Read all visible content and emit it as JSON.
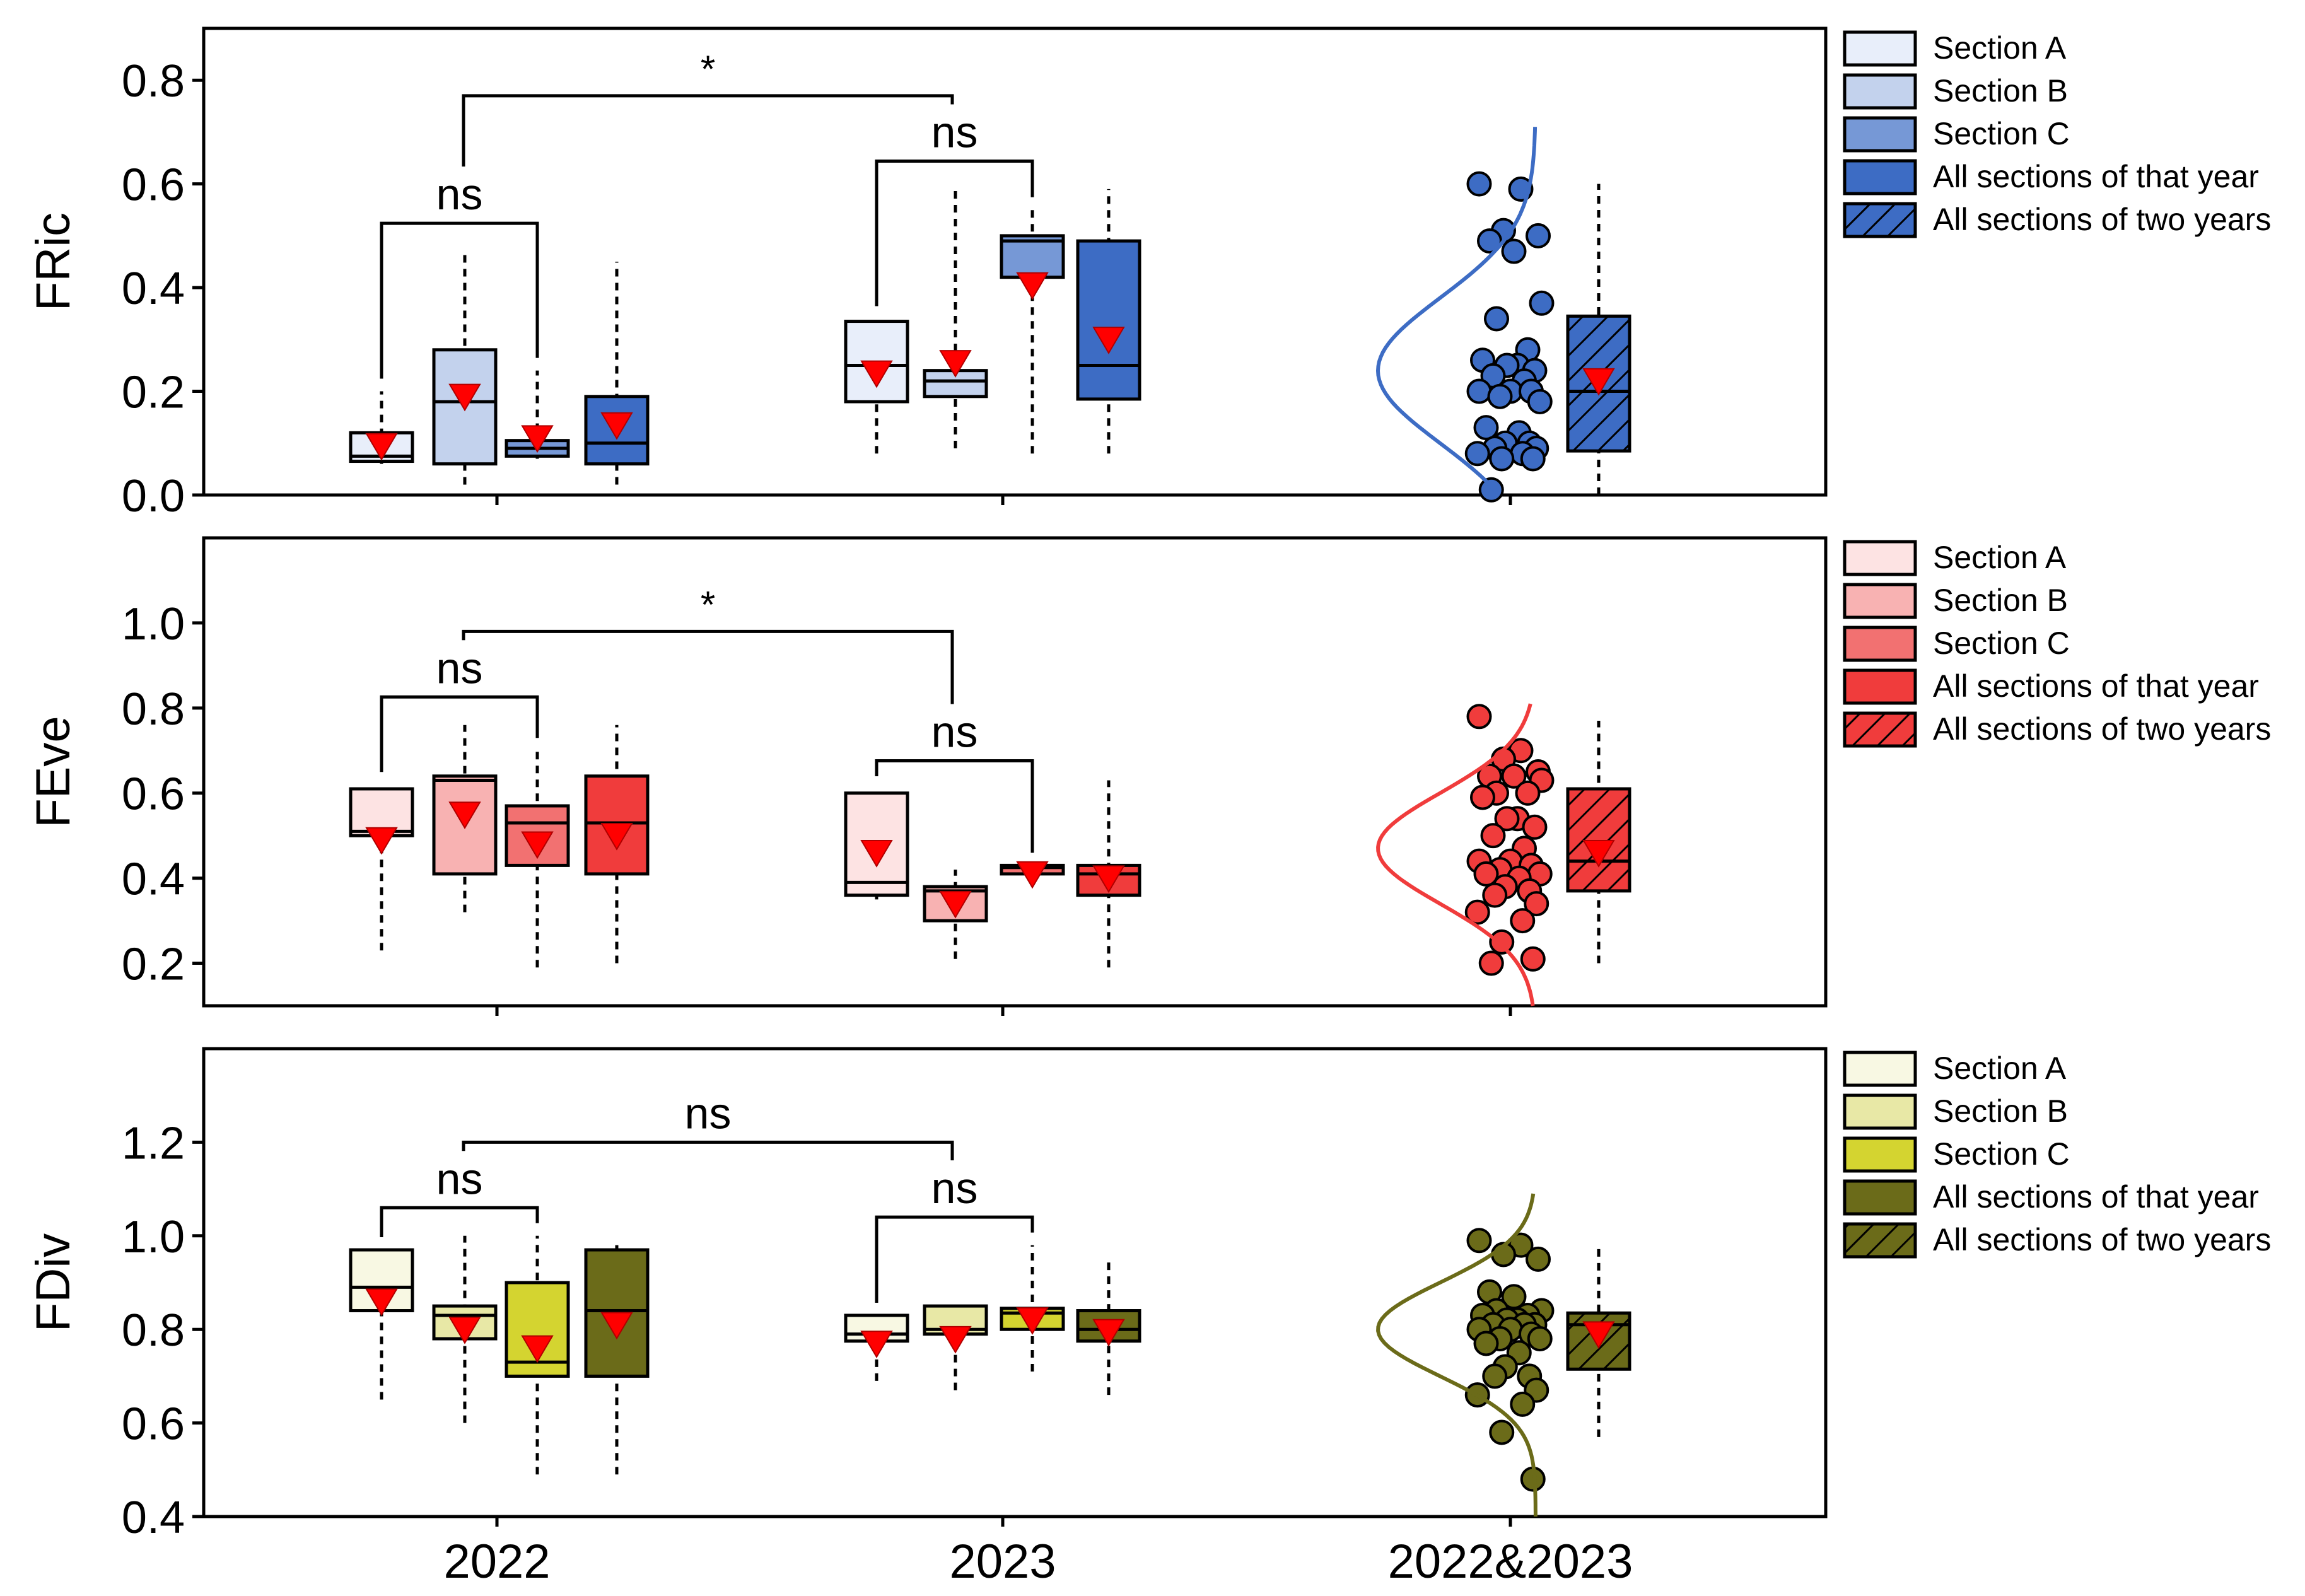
{
  "figure": {
    "x_labels": [
      "2022",
      "2023",
      "2022&2023"
    ],
    "legend_labels": [
      "Section A",
      "Section B",
      "Section C",
      "All sections of that year",
      "All sections of two years"
    ]
  },
  "chart_data": [
    {
      "type": "box",
      "ylabel": "FRic",
      "ylim": [
        0.0,
        0.9
      ],
      "yticks": [
        0.0,
        0.2,
        0.4,
        0.6,
        0.8
      ],
      "colors": [
        "#e8eefa",
        "#c3d2ed",
        "#7698d6",
        "#3d6cc4",
        "#3d6cc4"
      ],
      "boxes": [
        {
          "group": "2022",
          "series": "Section A",
          "whisker_low": 0.06,
          "q1": 0.065,
          "median": 0.075,
          "q3": 0.12,
          "whisker_high": 0.2,
          "mean": 0.095
        },
        {
          "group": "2022",
          "series": "Section B",
          "whisker_low": 0.02,
          "q1": 0.06,
          "median": 0.18,
          "q3": 0.28,
          "whisker_high": 0.47,
          "mean": 0.19
        },
        {
          "group": "2022",
          "series": "Section C",
          "whisker_low": 0.07,
          "q1": 0.075,
          "median": 0.09,
          "q3": 0.105,
          "whisker_high": 0.24,
          "mean": 0.11
        },
        {
          "group": "2022",
          "series": "All sections of that year",
          "whisker_low": 0.02,
          "q1": 0.06,
          "median": 0.1,
          "q3": 0.19,
          "whisker_high": 0.45,
          "mean": 0.135
        },
        {
          "group": "2023",
          "series": "Section A",
          "whisker_low": 0.08,
          "q1": 0.18,
          "median": 0.25,
          "q3": 0.335,
          "whisker_high": 0.34,
          "mean": 0.235
        },
        {
          "group": "2023",
          "series": "Section B",
          "whisker_low": 0.09,
          "q1": 0.19,
          "median": 0.22,
          "q3": 0.24,
          "whisker_high": 0.59,
          "mean": 0.255
        },
        {
          "group": "2023",
          "series": "Section C",
          "whisker_low": 0.08,
          "q1": 0.42,
          "median": 0.49,
          "q3": 0.5,
          "whisker_high": 0.55,
          "mean": 0.405
        },
        {
          "group": "2023",
          "series": "All sections of that year",
          "whisker_low": 0.08,
          "q1": 0.185,
          "median": 0.25,
          "q3": 0.49,
          "whisker_high": 0.59,
          "mean": 0.3
        },
        {
          "group": "2022&2023",
          "series": "All sections of two years",
          "whisker_low": 0.0,
          "q1": 0.085,
          "median": 0.2,
          "q3": 0.345,
          "whisker_high": 0.6,
          "mean": 0.22
        }
      ],
      "points": [
        0.6,
        0.59,
        0.51,
        0.5,
        0.49,
        0.47,
        0.37,
        0.34,
        0.28,
        0.26,
        0.25,
        0.25,
        0.24,
        0.23,
        0.22,
        0.2,
        0.2,
        0.2,
        0.19,
        0.18,
        0.13,
        0.12,
        0.1,
        0.1,
        0.09,
        0.09,
        0.08,
        0.08,
        0.07,
        0.07,
        0.01
      ],
      "curve": {
        "mean": 0.24,
        "sd": 0.14,
        "ymin": 0.0,
        "ymax": 0.71
      },
      "brackets": [
        {
          "from": "2022 Section A",
          "to": "2022 Section C",
          "label": "ns"
        },
        {
          "from": "2023 Section A",
          "to": "2023 Section C",
          "label": "ns"
        },
        {
          "from": "2022",
          "to": "2023",
          "label": "*"
        }
      ]
    },
    {
      "type": "box",
      "ylabel": "FEve",
      "ylim": [
        0.1,
        1.2
      ],
      "yticks": [
        0.2,
        0.4,
        0.6,
        0.8,
        1.0
      ],
      "colors": [
        "#fde3e3",
        "#f8b2b2",
        "#f27171",
        "#f03c3c",
        "#f03c3c"
      ],
      "boxes": [
        {
          "group": "2022",
          "series": "Section A",
          "whisker_low": 0.23,
          "q1": 0.5,
          "median": 0.51,
          "q3": 0.61,
          "whisker_high": 0.62,
          "mean": 0.49
        },
        {
          "group": "2022",
          "series": "Section B",
          "whisker_low": 0.32,
          "q1": 0.41,
          "median": 0.63,
          "q3": 0.64,
          "whisker_high": 0.76,
          "mean": 0.55
        },
        {
          "group": "2022",
          "series": "Section C",
          "whisker_low": 0.19,
          "q1": 0.43,
          "median": 0.53,
          "q3": 0.57,
          "whisker_high": 0.7,
          "mean": 0.48
        },
        {
          "group": "2022",
          "series": "All sections of that year",
          "whisker_low": 0.2,
          "q1": 0.41,
          "median": 0.53,
          "q3": 0.64,
          "whisker_high": 0.76,
          "mean": 0.5
        },
        {
          "group": "2023",
          "series": "Section A",
          "whisker_low": 0.35,
          "q1": 0.36,
          "median": 0.39,
          "q3": 0.6,
          "whisker_high": 0.61,
          "mean": 0.46
        },
        {
          "group": "2023",
          "series": "Section B",
          "whisker_low": 0.21,
          "q1": 0.3,
          "median": 0.37,
          "q3": 0.38,
          "whisker_high": 0.42,
          "mean": 0.34
        },
        {
          "group": "2023",
          "series": "Section C",
          "whisker_low": 0.4,
          "q1": 0.41,
          "median": 0.425,
          "q3": 0.43,
          "whisker_high": 0.43,
          "mean": 0.41
        },
        {
          "group": "2023",
          "series": "All sections of that year",
          "whisker_low": 0.19,
          "q1": 0.36,
          "median": 0.41,
          "q3": 0.43,
          "whisker_high": 0.63,
          "mean": 0.4
        },
        {
          "group": "2022&2023",
          "series": "All sections of two years",
          "whisker_low": 0.2,
          "q1": 0.37,
          "median": 0.44,
          "q3": 0.61,
          "whisker_high": 0.77,
          "mean": 0.46
        }
      ],
      "points": [
        0.78,
        0.7,
        0.68,
        0.65,
        0.64,
        0.64,
        0.63,
        0.6,
        0.6,
        0.59,
        0.54,
        0.54,
        0.52,
        0.5,
        0.47,
        0.44,
        0.44,
        0.43,
        0.42,
        0.41,
        0.41,
        0.4,
        0.38,
        0.37,
        0.36,
        0.34,
        0.32,
        0.3,
        0.25,
        0.21,
        0.2
      ],
      "curve": {
        "mean": 0.47,
        "sd": 0.13,
        "ymin": 0.1,
        "ymax": 0.81
      },
      "brackets": [
        {
          "from": "2022 Section A",
          "to": "2022 Section C",
          "label": "ns"
        },
        {
          "from": "2023 Section A",
          "to": "2023 Section C",
          "label": "ns"
        },
        {
          "from": "2022",
          "to": "2023",
          "label": "*"
        }
      ]
    },
    {
      "type": "box",
      "ylabel": "FDiv",
      "ylim": [
        0.4,
        1.4
      ],
      "yticks": [
        0.4,
        0.6,
        0.8,
        1.0,
        1.2
      ],
      "colors": [
        "#f8f8e3",
        "#e8e8a6",
        "#d4d430",
        "#6b6b19",
        "#6b6b19"
      ],
      "boxes": [
        {
          "group": "2022",
          "series": "Section A",
          "whisker_low": 0.65,
          "q1": 0.84,
          "median": 0.89,
          "q3": 0.97,
          "whisker_high": 0.97,
          "mean": 0.86
        },
        {
          "group": "2022",
          "series": "Section B",
          "whisker_low": 0.6,
          "q1": 0.78,
          "median": 0.83,
          "q3": 0.85,
          "whisker_high": 1.0,
          "mean": 0.8
        },
        {
          "group": "2022",
          "series": "Section C",
          "whisker_low": 0.49,
          "q1": 0.7,
          "median": 0.73,
          "q3": 0.9,
          "whisker_high": 1.0,
          "mean": 0.76
        },
        {
          "group": "2022",
          "series": "All sections of that year",
          "whisker_low": 0.49,
          "q1": 0.7,
          "median": 0.84,
          "q3": 0.97,
          "whisker_high": 0.98,
          "mean": 0.81
        },
        {
          "group": "2023",
          "series": "Section A",
          "whisker_low": 0.69,
          "q1": 0.775,
          "median": 0.79,
          "q3": 0.83,
          "whisker_high": 0.83,
          "mean": 0.77
        },
        {
          "group": "2023",
          "series": "Section B",
          "whisker_low": 0.67,
          "q1": 0.79,
          "median": 0.8,
          "q3": 0.85,
          "whisker_high": 0.85,
          "mean": 0.78
        },
        {
          "group": "2023",
          "series": "Section C",
          "whisker_low": 0.71,
          "q1": 0.8,
          "median": 0.835,
          "q3": 0.845,
          "whisker_high": 0.98,
          "mean": 0.82
        },
        {
          "group": "2023",
          "series": "All sections of that year",
          "whisker_low": 0.66,
          "q1": 0.775,
          "median": 0.8,
          "q3": 0.84,
          "whisker_high": 0.95,
          "mean": 0.795
        },
        {
          "group": "2022&2023",
          "series": "All sections of two years",
          "whisker_low": 0.57,
          "q1": 0.715,
          "median": 0.81,
          "q3": 0.835,
          "whisker_high": 0.98,
          "mean": 0.79
        }
      ],
      "points": [
        0.99,
        0.98,
        0.96,
        0.95,
        0.88,
        0.87,
        0.84,
        0.84,
        0.83,
        0.83,
        0.82,
        0.82,
        0.81,
        0.81,
        0.81,
        0.8,
        0.8,
        0.79,
        0.78,
        0.78,
        0.77,
        0.75,
        0.72,
        0.7,
        0.7,
        0.67,
        0.66,
        0.64,
        0.58,
        0.48
      ],
      "curve": {
        "mean": 0.8,
        "sd": 0.1,
        "ymin": 0.4,
        "ymax": 1.09
      },
      "brackets": [
        {
          "from": "2022 Section A",
          "to": "2022 Section C",
          "label": "ns"
        },
        {
          "from": "2023 Section A",
          "to": "2023 Section C",
          "label": "ns"
        },
        {
          "from": "2022",
          "to": "2023",
          "label": "ns"
        }
      ]
    }
  ]
}
